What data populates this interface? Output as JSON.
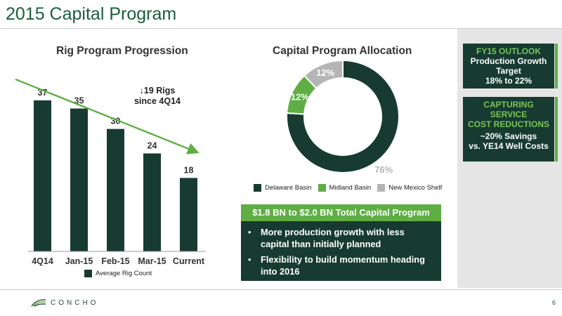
{
  "page": {
    "title": "2015 Capital Program",
    "page_number": "6",
    "logo_text": "CONCHO"
  },
  "colors": {
    "dark_green": "#173b30",
    "light_green": "#5fae44",
    "gray": "#b5b5b5",
    "arrow": "#5fae44"
  },
  "chart_data": [
    {
      "type": "bar",
      "title": "Rig Program Progression",
      "categories": [
        "4Q14",
        "Jan-15",
        "Feb-15",
        "Mar-15",
        "Current"
      ],
      "series": [
        {
          "name": "Average Rig Count",
          "values": [
            37,
            35,
            30,
            24,
            18
          ]
        }
      ],
      "ylim": [
        0,
        40
      ],
      "grid": false,
      "legend": "bottom",
      "annotation": "↓19 Rigs since 4Q14"
    },
    {
      "type": "pie",
      "title": "Capital Program Allocation",
      "labels": [
        "Delaware Basin",
        "Midland Basin",
        "New Mexico Shelf"
      ],
      "values": [
        76,
        12,
        12
      ],
      "value_labels": [
        "76%",
        "12%",
        "12%"
      ],
      "legend": "bottom"
    }
  ],
  "annotation": {
    "line1": "↓19 Rigs",
    "line2": "since 4Q14"
  },
  "total_banner": "$1.8 BN to $2.0 BN Total Capital Program",
  "bullets": [
    "More production growth with less capital than initially planned",
    "Flexibility to build momentum heading into 2016"
  ],
  "sidebar": {
    "card1": {
      "heading": "FY15 OUTLOOK",
      "line1": "Production Growth",
      "line2": "Target",
      "line3": "18% to 22%"
    },
    "card2": {
      "heading1": "CAPTURING",
      "heading2": "SERVICE",
      "heading3": "COST REDUCTIONS",
      "line1": "~20% Savings",
      "line2": "vs. YE14 Well Costs"
    }
  }
}
